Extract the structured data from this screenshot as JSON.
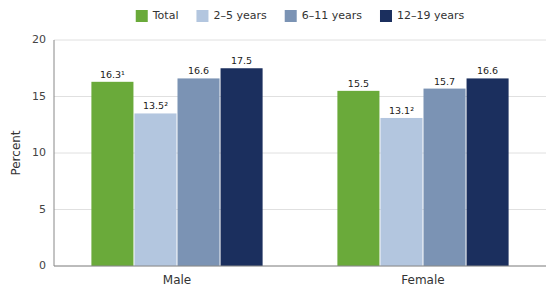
{
  "chart_data": {
    "type": "bar",
    "ylabel": "Percent",
    "categories": [
      "Male",
      "Female"
    ],
    "series": [
      {
        "name": "Total",
        "color": "#6aaa3a",
        "values": [
          16.3,
          15.5
        ],
        "value_labels": [
          "16.3¹",
          "15.5"
        ]
      },
      {
        "name": "2–5 years",
        "color": "#b3c6df",
        "values": [
          13.5,
          13.1
        ],
        "value_labels": [
          "13.5²",
          "13.1²"
        ]
      },
      {
        "name": "6–11 years",
        "color": "#7b93b4",
        "values": [
          16.6,
          15.7
        ],
        "value_labels": [
          "16.6",
          "15.7"
        ]
      },
      {
        "name": "12–19 years",
        "color": "#1b2f5e",
        "values": [
          17.5,
          16.6
        ],
        "value_labels": [
          "17.5",
          "16.6"
        ]
      }
    ],
    "ylim": [
      0,
      20
    ],
    "yticks": [
      0,
      5,
      10,
      15,
      20
    ],
    "grid": true,
    "legend": "top",
    "data_labels": true
  }
}
